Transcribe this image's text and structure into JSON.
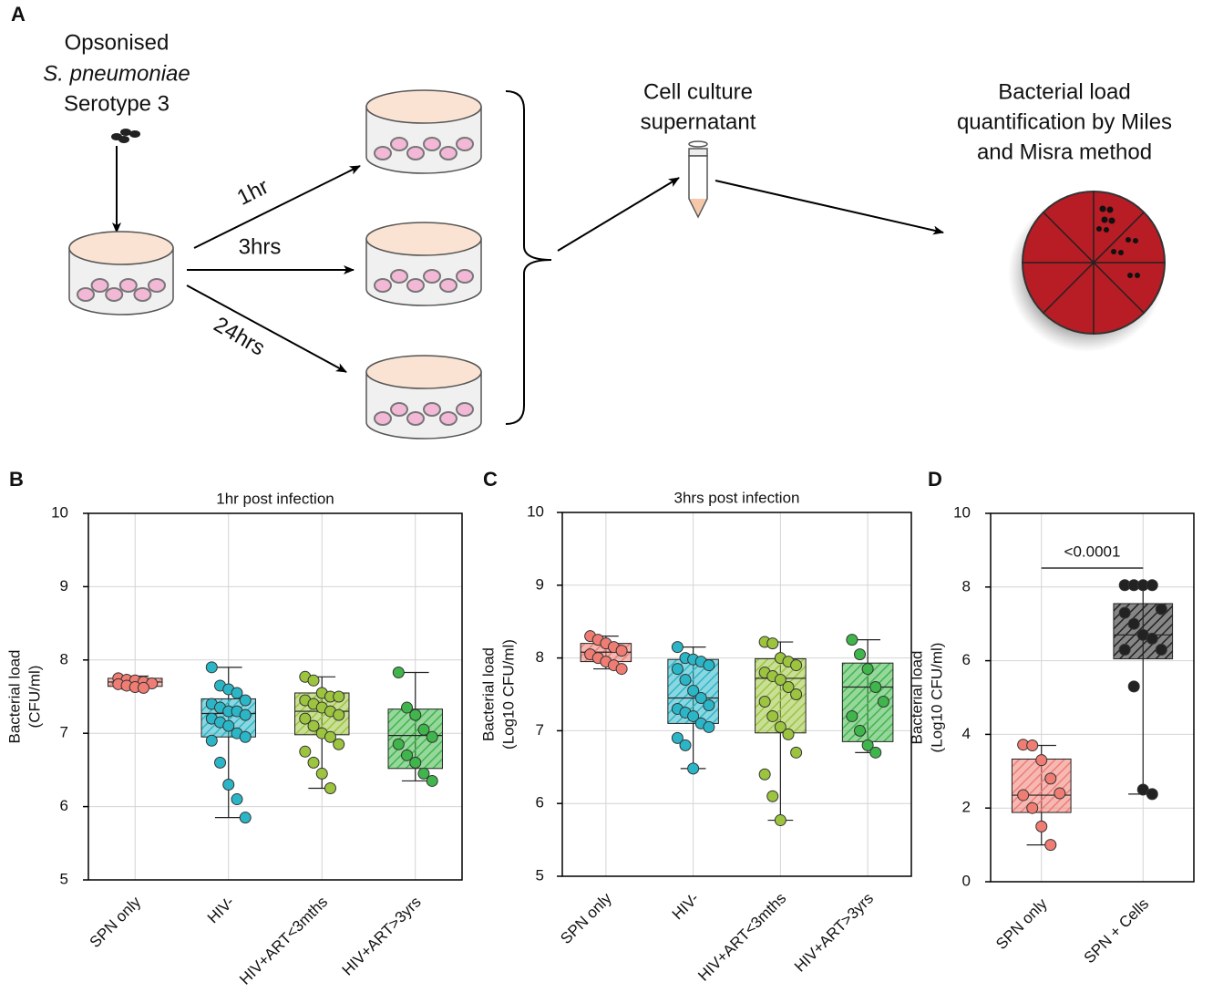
{
  "diagram": {
    "panel": "A",
    "inoculum": [
      "Opsonised",
      "S. pneumoniae",
      "Serotype 3"
    ],
    "timepoints": [
      "1hr",
      "3hrs",
      "24hrs"
    ],
    "supernatant": [
      "Cell culture",
      "supernatant"
    ],
    "quantification": [
      "Bacterial load",
      "quantification by Miles",
      "and Misra method"
    ]
  },
  "chart_data": [
    {
      "type": "box",
      "panel": "B",
      "title": "1hr post infection",
      "ylabel": [
        "Bacterial load",
        "(CFU/ml)"
      ],
      "categories": [
        "SPN only",
        "HIV-",
        "HIV+ART<3mths",
        "HIV+ART>3yrs"
      ],
      "colors": [
        "#ef7d74",
        "#2bb6c8",
        "#9cc43f",
        "#3fb54b"
      ],
      "ylim": [
        5,
        10
      ],
      "yticks": [
        5,
        6,
        7,
        8,
        9,
        10
      ],
      "grid": true,
      "boxes": [
        {
          "min": 7.6,
          "q1": 7.64,
          "median": 7.7,
          "q3": 7.75,
          "max": 7.78,
          "points": [
            7.75,
            7.73,
            7.72,
            7.7,
            7.68,
            7.67,
            7.65,
            7.63,
            7.62
          ]
        },
        {
          "min": 5.85,
          "q1": 6.95,
          "median": 7.27,
          "q3": 7.47,
          "max": 7.9,
          "points": [
            7.9,
            7.65,
            7.6,
            7.55,
            7.45,
            7.4,
            7.35,
            7.3,
            7.3,
            7.25,
            7.2,
            7.15,
            7.1,
            7.0,
            6.95,
            6.9,
            6.6,
            6.3,
            6.1,
            5.85
          ]
        },
        {
          "min": 6.25,
          "q1": 6.98,
          "median": 7.3,
          "q3": 7.55,
          "max": 7.77,
          "points": [
            7.77,
            7.72,
            7.55,
            7.5,
            7.5,
            7.45,
            7.4,
            7.35,
            7.3,
            7.25,
            7.2,
            7.1,
            7.0,
            6.95,
            6.85,
            6.75,
            6.6,
            6.45,
            6.25
          ]
        },
        {
          "min": 6.35,
          "q1": 6.52,
          "median": 6.97,
          "q3": 7.33,
          "max": 7.83,
          "points": [
            7.83,
            7.35,
            7.25,
            7.05,
            6.95,
            6.85,
            6.7,
            6.6,
            6.45,
            6.35
          ]
        }
      ]
    },
    {
      "type": "box",
      "panel": "C",
      "title": "3hrs post infection",
      "ylabel": [
        "Bacterial load",
        "(Log10 CFU/ml)"
      ],
      "categories": [
        "SPN only",
        "HIV-",
        "HIV+ART<3mths",
        "HIV+ART>3yrs"
      ],
      "colors": [
        "#ef7d74",
        "#2bb6c8",
        "#9cc43f",
        "#3fb54b"
      ],
      "ylim": [
        5,
        10
      ],
      "yticks": [
        5,
        6,
        7,
        8,
        9,
        10
      ],
      "grid": true,
      "boxes": [
        {
          "min": 7.85,
          "q1": 7.95,
          "median": 8.08,
          "q3": 8.2,
          "max": 8.3,
          "points": [
            8.3,
            8.25,
            8.2,
            8.15,
            8.1,
            8.05,
            8.0,
            7.95,
            7.9,
            7.85
          ]
        },
        {
          "min": 6.48,
          "q1": 7.1,
          "median": 7.45,
          "q3": 7.98,
          "max": 8.15,
          "points": [
            8.15,
            8.0,
            7.98,
            7.95,
            7.9,
            7.85,
            7.7,
            7.55,
            7.45,
            7.35,
            7.3,
            7.25,
            7.2,
            7.1,
            7.05,
            6.9,
            6.8,
            6.48
          ]
        },
        {
          "min": 5.77,
          "q1": 6.97,
          "median": 7.72,
          "q3": 7.99,
          "max": 8.22,
          "points": [
            8.22,
            8.2,
            8.0,
            7.95,
            7.9,
            7.8,
            7.75,
            7.7,
            7.6,
            7.5,
            7.4,
            7.2,
            7.05,
            6.95,
            6.7,
            6.4,
            6.1,
            5.77
          ]
        },
        {
          "min": 6.7,
          "q1": 6.85,
          "median": 7.6,
          "q3": 7.93,
          "max": 8.25,
          "points": [
            8.25,
            8.05,
            7.85,
            7.6,
            7.4,
            7.2,
            7.0,
            6.8,
            6.7
          ]
        }
      ]
    },
    {
      "type": "box",
      "panel": "D",
      "ylabel": [
        "Bacterial load",
        "(Log10 CFU/ml)"
      ],
      "categories": [
        "SPN only",
        "SPN + Cells"
      ],
      "colors": [
        "#ef7d74",
        "#222222"
      ],
      "ylim": [
        0,
        10
      ],
      "yticks": [
        0,
        2,
        4,
        6,
        8,
        10
      ],
      "grid": true,
      "annotation": "<0.0001",
      "boxes": [
        {
          "min": 1.0,
          "q1": 1.88,
          "median": 2.35,
          "q3": 3.33,
          "max": 3.7,
          "points": [
            3.72,
            3.7,
            3.3,
            2.8,
            2.4,
            2.35,
            2.0,
            1.5,
            1.0
          ]
        },
        {
          "min": 2.38,
          "q1": 6.05,
          "median": 6.7,
          "q3": 7.55,
          "max": 8.05,
          "points": [
            8.05,
            8.05,
            8.05,
            8.05,
            7.4,
            7.3,
            7.0,
            6.7,
            6.6,
            6.3,
            6.3,
            5.3,
            2.5,
            2.38
          ]
        }
      ]
    }
  ]
}
